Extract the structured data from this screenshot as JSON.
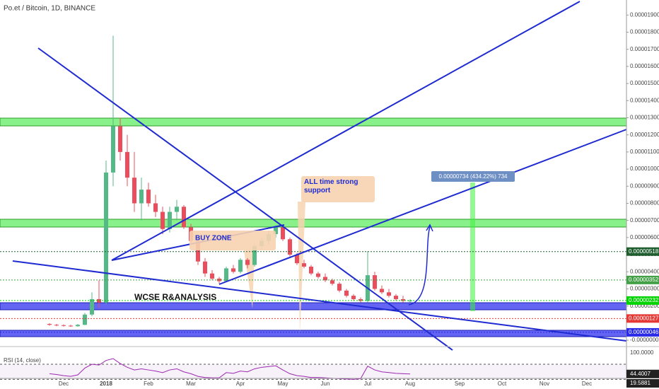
{
  "chart_data": {
    "type": "candlestick",
    "title": "Po.et / Bitcoin, 1D, BINANCE",
    "categories": [
      null,
      null,
      "Dec",
      null,
      null,
      null,
      null,
      null,
      "2018",
      null,
      null,
      null,
      null,
      null,
      "Feb",
      null,
      null,
      null,
      null,
      null,
      "Mar",
      null,
      null,
      null,
      null,
      null,
      null,
      "Apr",
      null,
      null,
      null,
      null,
      null,
      "May",
      null,
      null,
      null,
      null,
      null,
      "Jun",
      null,
      null,
      null,
      null,
      null,
      "Jul",
      null,
      null,
      null,
      null,
      null,
      "Aug",
      null,
      null,
      null,
      null,
      null,
      null,
      "Sep",
      null,
      null,
      null,
      null,
      null,
      "Oct",
      null,
      null,
      null,
      null,
      null,
      "Nov",
      null,
      null,
      null,
      null,
      null,
      "Dec",
      null
    ],
    "open": [
      9.5e-07,
      9e-07,
      8.8e-07,
      8.5e-07,
      8.2e-07,
      9e-07,
      1.5e-06,
      2.4e-06,
      2.2e-06,
      9.8e-06,
      1.25e-05,
      1.1e-05,
      9.5e-06,
      8e-06,
      8.8e-06,
      8e-06,
      7.5e-06,
      6.5e-06,
      7.5e-06,
      7.8e-06,
      6.6e-06,
      5.8e-06,
      4.6e-06,
      3.9e-06,
      3.6e-06,
      3.45e-06,
      4.2e-06,
      4e-06,
      4.7e-06,
      4.4e-06,
      5.5e-06,
      5.8e-06,
      6.2e-06,
      6.6e-06,
      5.9e-06,
      5e-06,
      4.5e-06,
      4.3e-06,
      3.9e-06,
      3.7e-06,
      3.5e-06,
      3.3e-06,
      2.9e-06,
      2.6e-06,
      2.4e-06,
      2.3e-06,
      3.8e-06,
      3e-06,
      2.8e-06,
      2.6e-06,
      2.4e-06,
      2.3e-06,
      null,
      null,
      null,
      null,
      null,
      null,
      null,
      null,
      null,
      null,
      null,
      null,
      null,
      null,
      null,
      null,
      null,
      null,
      null,
      null,
      null,
      null,
      null,
      null,
      null,
      null
    ],
    "high": [
      1e-06,
      9.5e-07,
      9.2e-07,
      9e-07,
      9.5e-07,
      1.6e-06,
      2.8e-06,
      3.5e-06,
      1.05e-05,
      1.78e-05,
      1.3e-05,
      1.2e-05,
      1.1e-05,
      9.5e-06,
      9.2e-06,
      8.5e-06,
      7.8e-06,
      7.8e-06,
      8.2e-06,
      7.9e-06,
      6.8e-06,
      6e-06,
      4.8e-06,
      4.1e-06,
      3.7e-06,
      4.3e-06,
      4.4e-06,
      4.8e-06,
      4.8e-06,
      5.6e-06,
      6e-06,
      6.4e-06,
      6.7e-06,
      6.7e-06,
      6e-06,
      5.1e-06,
      4.7e-06,
      4.4e-06,
      4e-06,
      3.9e-06,
      3.6e-06,
      3.4e-06,
      3e-06,
      2.7e-06,
      2.5e-06,
      5.2e-06,
      4e-06,
      3.2e-06,
      3e-06,
      2.7e-06,
      2.6e-06,
      2.4e-06,
      null,
      null,
      null,
      null,
      null,
      null,
      null,
      null,
      null,
      null,
      null,
      null,
      null,
      null,
      null,
      null,
      null,
      null,
      null,
      null,
      null,
      null,
      null,
      null,
      null,
      null
    ],
    "low": [
      8.5e-07,
      8.2e-07,
      8e-07,
      7.8e-07,
      7.8e-07,
      8.8e-07,
      1.4e-06,
      1.9e-06,
      2.1e-06,
      9e-06,
      1.05e-05,
      9e-06,
      7.5e-06,
      7e-06,
      7.8e-06,
      7.2e-06,
      6.2e-06,
      6.3e-06,
      7e-06,
      6.5e-06,
      5.6e-06,
      4.4e-06,
      3.7e-06,
      3.5e-06,
      3.3e-06,
      3.4e-06,
      3.9e-06,
      3.9e-06,
      4.2e-06,
      4.3e-06,
      5.3e-06,
      5.6e-06,
      6e-06,
      5.8e-06,
      4.9e-06,
      4.4e-06,
      4.2e-06,
      3.8e-06,
      3.6e-06,
      3.4e-06,
      3.2e-06,
      2.8e-06,
      2.5e-06,
      2.3e-06,
      2.2e-06,
      2.2e-06,
      2.9e-06,
      2.7e-06,
      2.5e-06,
      2.3e-06,
      2.2e-06,
      2.2e-06,
      null,
      null,
      null,
      null,
      null,
      null,
      null,
      null,
      null,
      null,
      null,
      null,
      null,
      null,
      null,
      null,
      null,
      null,
      null,
      null,
      null,
      null,
      null,
      null,
      null,
      null
    ],
    "close": [
      9e-07,
      8.8e-07,
      8.5e-07,
      8.2e-07,
      9e-07,
      1.5e-06,
      2.4e-06,
      2.2e-06,
      9.8e-06,
      1.25e-05,
      1.1e-05,
      9.5e-06,
      8e-06,
      8.8e-06,
      8e-06,
      7.5e-06,
      6.5e-06,
      7.5e-06,
      7.8e-06,
      6.6e-06,
      5.8e-06,
      4.6e-06,
      3.9e-06,
      3.6e-06,
      3.45e-06,
      4.2e-06,
      4e-06,
      4.7e-06,
      4.4e-06,
      5.5e-06,
      5.8e-06,
      6.2e-06,
      6.6e-06,
      5.9e-06,
      5e-06,
      4.5e-06,
      4.3e-06,
      3.9e-06,
      3.7e-06,
      3.5e-06,
      3.3e-06,
      2.9e-06,
      2.6e-06,
      2.4e-06,
      2.3e-06,
      3.8e-06,
      3e-06,
      2.8e-06,
      2.6e-06,
      2.4e-06,
      2.3e-06,
      2.32e-06,
      null,
      null,
      null,
      null,
      null,
      null,
      null,
      null,
      null,
      null,
      null,
      null,
      null,
      null,
      null,
      null,
      null,
      null,
      null,
      null,
      null,
      null,
      null,
      null,
      null,
      null
    ],
    "up_color": "#53b987",
    "down_color": "#eb4d5c",
    "ylim": [
      -3.7e-07,
      1.988e-05
    ],
    "yticks": [
      {
        "value": 1.9e-05,
        "label": "0.00001900"
      },
      {
        "value": 1.8e-05,
        "label": "0.00001800"
      },
      {
        "value": 1.7e-05,
        "label": "0.00001700"
      },
      {
        "value": 1.6e-05,
        "label": "0.00001600"
      },
      {
        "value": 1.5e-05,
        "label": "0.00001500"
      },
      {
        "value": 1.4e-05,
        "label": "0.00001400"
      },
      {
        "value": 1.3e-05,
        "label": "0.00001300"
      },
      {
        "value": 1.2e-05,
        "label": "0.00001200"
      },
      {
        "value": 1.1e-05,
        "label": "0.00001100"
      },
      {
        "value": 1e-05,
        "label": "0.00001000"
      },
      {
        "value": 9e-06,
        "label": "0.00000900"
      },
      {
        "value": 8e-06,
        "label": "0.00000800"
      },
      {
        "value": 7e-06,
        "label": "0.00000700"
      },
      {
        "value": 6e-06,
        "label": "0.00000600"
      },
      {
        "value": 5e-06,
        "label": "0.00000500"
      },
      {
        "value": 4e-06,
        "label": "0.00000400"
      },
      {
        "value": 3e-06,
        "label": "0.00000300"
      },
      {
        "value": 2e-06,
        "label": "0.00000200"
      },
      {
        "value": 0,
        "label": "-0.0000000"
      }
    ],
    "price_labels": [
      {
        "value": 5.18e-06,
        "label": "0.00000518",
        "color": "#1e5e2e"
      },
      {
        "value": 3.52e-06,
        "label": "0.00000352",
        "color": "#43a047"
      },
      {
        "value": 2.32e-06,
        "label": "0.00000232",
        "color": "#00d400"
      },
      {
        "value": 1.27e-06,
        "label": "0.00000127",
        "color": "#e53935"
      },
      {
        "value": 4.6e-07,
        "label": "0.00000046",
        "color": "#2a2ae8"
      }
    ],
    "rsi": {
      "name": "RSI (14, close)",
      "color": "#9c27b0",
      "values": [
        45,
        43,
        40,
        38,
        42,
        60,
        70,
        68,
        80,
        85,
        72,
        62,
        55,
        58,
        55,
        52,
        48,
        55,
        58,
        50,
        45,
        38,
        35,
        34,
        34,
        48,
        46,
        52,
        50,
        58,
        62,
        64,
        66,
        55,
        45,
        40,
        38,
        35,
        35,
        34,
        33,
        32,
        31,
        30,
        32,
        65,
        55,
        50,
        48,
        46,
        45,
        44.4007,
        null,
        null,
        null,
        null,
        null,
        null,
        null,
        null,
        null,
        null,
        null,
        null,
        null,
        null,
        null,
        null,
        null,
        null,
        null,
        null,
        null,
        null,
        null,
        null,
        null,
        null
      ],
      "ylim": [
        19.5881,
        100
      ],
      "band": [
        30,
        70
      ],
      "yticks": [
        {
          "value": 100,
          "label": "100.0000"
        },
        {
          "value": 19.5881,
          "label": "19.5881"
        }
      ],
      "last": {
        "value": 44.4007,
        "label": "44.4007"
      }
    },
    "annotations": {
      "buy_zone": "BUY ZONE",
      "support": "ALL time strong support",
      "watermark": "WCSE R&ANALYSIS",
      "measure": "0.00000734 (434.22%) 734"
    }
  }
}
